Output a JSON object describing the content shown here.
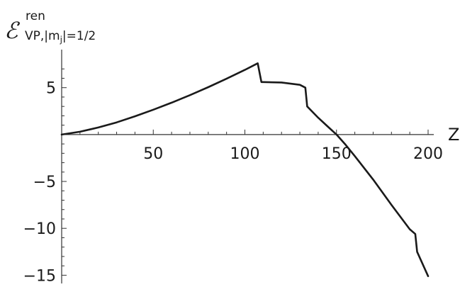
{
  "chart_data": {
    "type": "line",
    "title": "",
    "xlabel": "Z",
    "ylabel": {
      "main": "ℰ",
      "superscript": "ren",
      "subscript": "VP,|m",
      "subscript_inner": "j",
      "subscript_tail": "|=1/2"
    },
    "xlim": [
      0,
      200
    ],
    "ylim": [
      -15.5,
      8
    ],
    "x_ticks": [
      50,
      100,
      150,
      200
    ],
    "y_ticks": [
      -15,
      -10,
      -5,
      5
    ],
    "grid": false,
    "series": [
      {
        "color": "#1a1a1a",
        "x": [
          0,
          10,
          20,
          30,
          40,
          50,
          60,
          70,
          80,
          90,
          100,
          107,
          109,
          110,
          120,
          130,
          133,
          134,
          140,
          145,
          150,
          155,
          160,
          170,
          180,
          190,
          193,
          194,
          200
        ],
        "y": [
          0,
          0.3,
          0.75,
          1.3,
          1.95,
          2.65,
          3.4,
          4.2,
          5.05,
          5.95,
          6.9,
          7.6,
          5.6,
          5.6,
          5.55,
          5.3,
          5.0,
          3.0,
          1.8,
          0.9,
          0.0,
          -1.1,
          -2.3,
          -4.8,
          -7.5,
          -10.1,
          -10.6,
          -12.5,
          -15.1
        ]
      }
    ]
  }
}
